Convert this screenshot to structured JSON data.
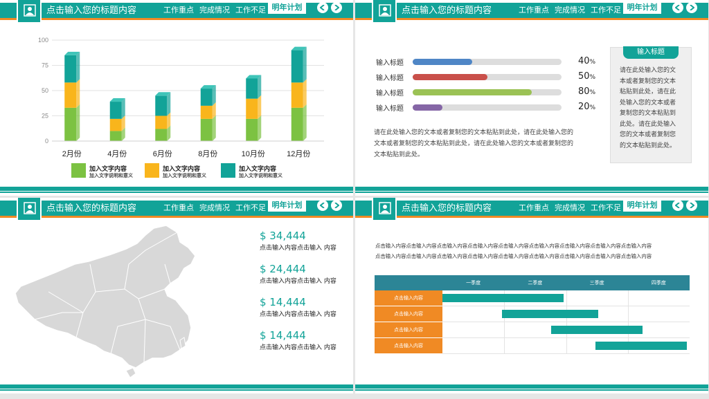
{
  "header": {
    "title": "点击输入您的标题内容",
    "nav": [
      "工作重点",
      "完成情况",
      "工作不足"
    ],
    "active": "明年计划"
  },
  "slide1": {
    "chart_data": {
      "type": "bar",
      "stacked": true,
      "categories": [
        "2月份",
        "4月份",
        "6月份",
        "8月份",
        "10月份",
        "12月份"
      ],
      "yticks": [
        "100",
        "75",
        "50",
        "25",
        "0"
      ],
      "ylim": [
        0,
        100
      ],
      "series": [
        {
          "color": "#7cc242",
          "values": [
            33,
            10,
            12,
            22,
            22,
            33
          ]
        },
        {
          "color": "#f9b51c",
          "values": [
            25,
            12,
            13,
            13,
            20,
            25
          ]
        },
        {
          "color": "#12a398",
          "values": [
            27,
            17,
            20,
            17,
            20,
            32
          ]
        }
      ]
    },
    "legend": [
      {
        "title": "加入文字内容",
        "sub": "加入文字说明和意义",
        "color": "#7cc242"
      },
      {
        "title": "加入文字内容",
        "sub": "加入文字说明和意义",
        "color": "#f9b51c"
      },
      {
        "title": "加入文字内容",
        "sub": "加入文字说明和意义",
        "color": "#12a398"
      }
    ]
  },
  "slide2": {
    "bars": [
      {
        "label": "输入标题",
        "percent": 40,
        "value": "40",
        "color": "#4f86c6"
      },
      {
        "label": "输入标题",
        "percent": 50,
        "value": "50",
        "color": "#c9504a"
      },
      {
        "label": "输入标题",
        "percent": 80,
        "value": "80",
        "color": "#9bc255"
      },
      {
        "label": "输入标题",
        "percent": 20,
        "value": "20",
        "color": "#8566a6"
      }
    ],
    "unit": "%",
    "paragraph": [
      "请在此处输入您的文本或者复制您的文本粘贴到此处，请在此处输入您的",
      "文本或者复制您的文本粘贴到此处，请在此处输入您的文本或者复制您的",
      "文本粘贴到此处。"
    ],
    "box_title": "输入标题",
    "box_lines": [
      "请在此处输入您的文",
      "本或者复制您的文本",
      "粘贴到此处，请在此",
      "处输入您的文本或者",
      "复制您的文本粘贴到",
      "此处。请在此处输入",
      "您的文本或者复制您",
      "的文本粘贴到此处。"
    ]
  },
  "slide3": {
    "stats": [
      {
        "value": "$ 34,444",
        "desc": "点击输入内容点击输入 内容"
      },
      {
        "value": "$ 24,444",
        "desc": "点击输入内容点击输入 内容"
      },
      {
        "value": "$ 14,444",
        "desc": "点击输入内容点击输入 内容"
      },
      {
        "value": "$ 14,444",
        "desc": "点击输入内容点击输入 内容"
      }
    ]
  },
  "slide4": {
    "lines": [
      "点击输入内容点击输入内容点击输入内容点击输入内容点击输入内容点击输入内容点击输入内容点击输入内容点击输入内容",
      "点击输入内容点击输入内容点击输入内容点击输入内容点击输入内容点击输入内容点击输入内容点击输入内容点击输入内容"
    ],
    "columns": [
      "一季度",
      "二季度",
      "三季度",
      "四季度"
    ],
    "rows": [
      {
        "label": "点击输入内容",
        "start": 0.0,
        "end": 0.49
      },
      {
        "label": "点击输入内容",
        "start": 0.24,
        "end": 0.63
      },
      {
        "label": "点击输入内容",
        "start": 0.44,
        "end": 0.81
      },
      {
        "label": "点击输入内容",
        "start": 0.62,
        "end": 0.99
      }
    ]
  }
}
